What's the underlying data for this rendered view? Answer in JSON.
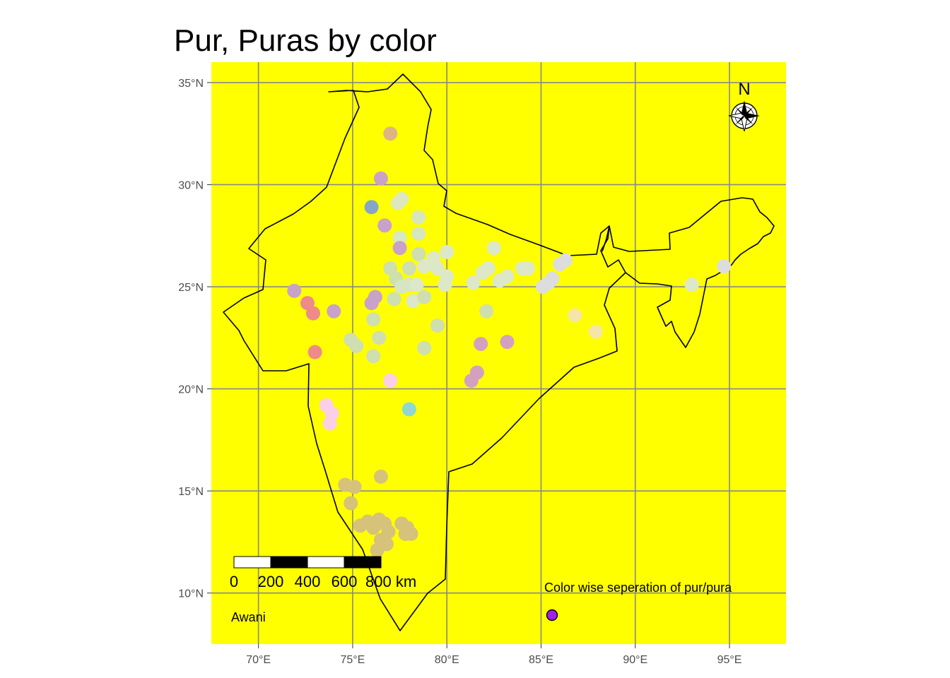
{
  "title": "Pur, Puras by color",
  "map": {
    "background": "#ffff00",
    "border_color": "#000000",
    "grid_color": "#888888",
    "lon_range": [
      67.5,
      98
    ],
    "lat_range": [
      7.5,
      36
    ],
    "lon_ticks": [
      {
        "value": 70,
        "label": "70°E"
      },
      {
        "value": 75,
        "label": "75°E"
      },
      {
        "value": 80,
        "label": "80°E"
      },
      {
        "value": 85,
        "label": "85°E"
      },
      {
        "value": 90,
        "label": "90°E"
      },
      {
        "value": 95,
        "label": "95°E"
      }
    ],
    "lat_ticks": [
      {
        "value": 35,
        "label": "35°N"
      },
      {
        "value": 30,
        "label": "30°N"
      },
      {
        "value": 25,
        "label": "25°N"
      },
      {
        "value": 20,
        "label": "20°N"
      },
      {
        "value": 15,
        "label": "15°N"
      },
      {
        "value": 10,
        "label": "10°N"
      }
    ]
  },
  "north_arrow": {
    "label": "N",
    "icon": "compass-rose-icon"
  },
  "scale_bar": {
    "labels": [
      "0",
      "200",
      "400",
      "600",
      "800 km"
    ],
    "colors": [
      "#ffffff",
      "#000000",
      "#ffffff",
      "#000000"
    ]
  },
  "annotations": {
    "credit": "Awani",
    "legend_text": "Color wise seperation of pur/pura",
    "legend_dot_color": "#a020f0"
  },
  "points": [
    {
      "lon": 77.0,
      "lat": 32.5,
      "color": "#ddb583"
    },
    {
      "lon": 76.5,
      "lat": 30.3,
      "color": "#caa2c8"
    },
    {
      "lon": 76.0,
      "lat": 28.9,
      "color": "#86a6c8"
    },
    {
      "lon": 76.7,
      "lat": 28.0,
      "color": "#c8a2c8"
    },
    {
      "lon": 77.4,
      "lat": 29.1,
      "color": "#dde8c0"
    },
    {
      "lon": 77.6,
      "lat": 29.3,
      "color": "#dde8c0"
    },
    {
      "lon": 78.5,
      "lat": 28.4,
      "color": "#d8e6bd"
    },
    {
      "lon": 77.5,
      "lat": 27.4,
      "color": "#d6e8c4"
    },
    {
      "lon": 78.5,
      "lat": 27.6,
      "color": "#d8e6bd"
    },
    {
      "lon": 77.5,
      "lat": 26.9,
      "color": "#c8a2c8"
    },
    {
      "lon": 78.5,
      "lat": 26.6,
      "color": "#cfdfb0"
    },
    {
      "lon": 79.3,
      "lat": 26.4,
      "color": "#dde8c8"
    },
    {
      "lon": 80.0,
      "lat": 26.7,
      "color": "#dde8c8"
    },
    {
      "lon": 77.0,
      "lat": 25.9,
      "color": "#cfdfb0"
    },
    {
      "lon": 77.3,
      "lat": 25.4,
      "color": "#cfdfb0"
    },
    {
      "lon": 78.0,
      "lat": 25.9,
      "color": "#cfdfb0"
    },
    {
      "lon": 78.8,
      "lat": 26.0,
      "color": "#dde8c8"
    },
    {
      "lon": 79.5,
      "lat": 25.9,
      "color": "#dde8c8"
    },
    {
      "lon": 80.0,
      "lat": 25.5,
      "color": "#dde8c8"
    },
    {
      "lon": 77.6,
      "lat": 25.0,
      "color": "#d6e6c4"
    },
    {
      "lon": 78.0,
      "lat": 25.1,
      "color": "#d6e6c4"
    },
    {
      "lon": 78.4,
      "lat": 25.1,
      "color": "#dde8c8"
    },
    {
      "lon": 79.9,
      "lat": 25.1,
      "color": "#dde8c8"
    },
    {
      "lon": 77.2,
      "lat": 24.4,
      "color": "#cfdfb0"
    },
    {
      "lon": 78.2,
      "lat": 24.3,
      "color": "#dde8c8"
    },
    {
      "lon": 78.8,
      "lat": 24.5,
      "color": "#cfdfb0"
    },
    {
      "lon": 76.0,
      "lat": 24.2,
      "color": "#c8a2c8"
    },
    {
      "lon": 76.2,
      "lat": 24.5,
      "color": "#c8a2c8"
    },
    {
      "lon": 76.1,
      "lat": 23.4,
      "color": "#cfdfb0"
    },
    {
      "lon": 76.4,
      "lat": 22.5,
      "color": "#cfdfb0"
    },
    {
      "lon": 74.9,
      "lat": 22.4,
      "color": "#cfdfb0"
    },
    {
      "lon": 75.2,
      "lat": 22.1,
      "color": "#cfdfb0"
    },
    {
      "lon": 76.1,
      "lat": 21.6,
      "color": "#cfdfb0"
    },
    {
      "lon": 79.5,
      "lat": 23.1,
      "color": "#cfdfb0"
    },
    {
      "lon": 78.8,
      "lat": 22.0,
      "color": "#cfdfb0"
    },
    {
      "lon": 81.4,
      "lat": 25.2,
      "color": "#dde8c8"
    },
    {
      "lon": 81.9,
      "lat": 25.7,
      "color": "#dde8c8"
    },
    {
      "lon": 82.2,
      "lat": 25.9,
      "color": "#dde8c8"
    },
    {
      "lon": 82.5,
      "lat": 26.9,
      "color": "#dde8c8"
    },
    {
      "lon": 82.8,
      "lat": 25.3,
      "color": "#dde8c8"
    },
    {
      "lon": 83.2,
      "lat": 25.5,
      "color": "#dde8c8"
    },
    {
      "lon": 84.0,
      "lat": 25.9,
      "color": "#dde8c8"
    },
    {
      "lon": 84.3,
      "lat": 25.9,
      "color": "#dde8c8"
    },
    {
      "lon": 85.1,
      "lat": 25.0,
      "color": "#dddddd"
    },
    {
      "lon": 85.4,
      "lat": 25.2,
      "color": "#dddddd"
    },
    {
      "lon": 85.6,
      "lat": 25.4,
      "color": "#dddddd"
    },
    {
      "lon": 86.0,
      "lat": 26.1,
      "color": "#dddddd"
    },
    {
      "lon": 86.3,
      "lat": 26.3,
      "color": "#dddddd"
    },
    {
      "lon": 82.1,
      "lat": 23.8,
      "color": "#cfdfb0"
    },
    {
      "lon": 86.8,
      "lat": 23.6,
      "color": "#f5e6a8"
    },
    {
      "lon": 87.9,
      "lat": 22.8,
      "color": "#f5e6a8"
    },
    {
      "lon": 81.8,
      "lat": 22.2,
      "color": "#d4a0c0"
    },
    {
      "lon": 83.2,
      "lat": 22.3,
      "color": "#d4a0c0"
    },
    {
      "lon": 81.6,
      "lat": 20.8,
      "color": "#d4a0c0"
    },
    {
      "lon": 81.3,
      "lat": 20.4,
      "color": "#d4a0c0"
    },
    {
      "lon": 71.9,
      "lat": 24.8,
      "color": "#c8a2c8"
    },
    {
      "lon": 74.0,
      "lat": 23.8,
      "color": "#c8a2c8"
    },
    {
      "lon": 72.6,
      "lat": 24.2,
      "color": "#ee8a8a"
    },
    {
      "lon": 72.9,
      "lat": 23.7,
      "color": "#ee8a8a"
    },
    {
      "lon": 73.0,
      "lat": 21.8,
      "color": "#ee8a8a"
    },
    {
      "lon": 77.0,
      "lat": 20.4,
      "color": "#fbcfe8"
    },
    {
      "lon": 78.0,
      "lat": 19.0,
      "color": "#8ed8d0"
    },
    {
      "lon": 73.6,
      "lat": 19.2,
      "color": "#fbcfe8"
    },
    {
      "lon": 73.9,
      "lat": 18.8,
      "color": "#fbcfe8"
    },
    {
      "lon": 73.8,
      "lat": 18.3,
      "color": "#fbcfe8"
    },
    {
      "lon": 93.0,
      "lat": 25.1,
      "color": "#dde8c8"
    },
    {
      "lon": 94.7,
      "lat": 26.0,
      "color": "#dddddd"
    },
    {
      "lon": 74.6,
      "lat": 15.3,
      "color": "#d6c27a"
    },
    {
      "lon": 75.1,
      "lat": 15.2,
      "color": "#d6c27a"
    },
    {
      "lon": 74.9,
      "lat": 14.4,
      "color": "#d6c27a"
    },
    {
      "lon": 76.5,
      "lat": 15.7,
      "color": "#d6c27a"
    },
    {
      "lon": 75.4,
      "lat": 13.3,
      "color": "#d6c27a"
    },
    {
      "lon": 75.8,
      "lat": 13.5,
      "color": "#d6c27a"
    },
    {
      "lon": 76.1,
      "lat": 13.2,
      "color": "#d6c27a"
    },
    {
      "lon": 76.4,
      "lat": 13.6,
      "color": "#d6c27a"
    },
    {
      "lon": 76.7,
      "lat": 13.4,
      "color": "#d6c27a"
    },
    {
      "lon": 76.9,
      "lat": 13.0,
      "color": "#d6c27a"
    },
    {
      "lon": 76.5,
      "lat": 12.6,
      "color": "#d6c27a"
    },
    {
      "lon": 76.8,
      "lat": 12.4,
      "color": "#d6c27a"
    },
    {
      "lon": 76.3,
      "lat": 12.1,
      "color": "#d6c27a"
    },
    {
      "lon": 77.6,
      "lat": 13.4,
      "color": "#d6c27a"
    },
    {
      "lon": 77.9,
      "lat": 13.2,
      "color": "#d6c27a"
    },
    {
      "lon": 78.1,
      "lat": 12.9,
      "color": "#d6c27a"
    },
    {
      "lon": 77.8,
      "lat": 12.9,
      "color": "#d6c27a"
    }
  ]
}
